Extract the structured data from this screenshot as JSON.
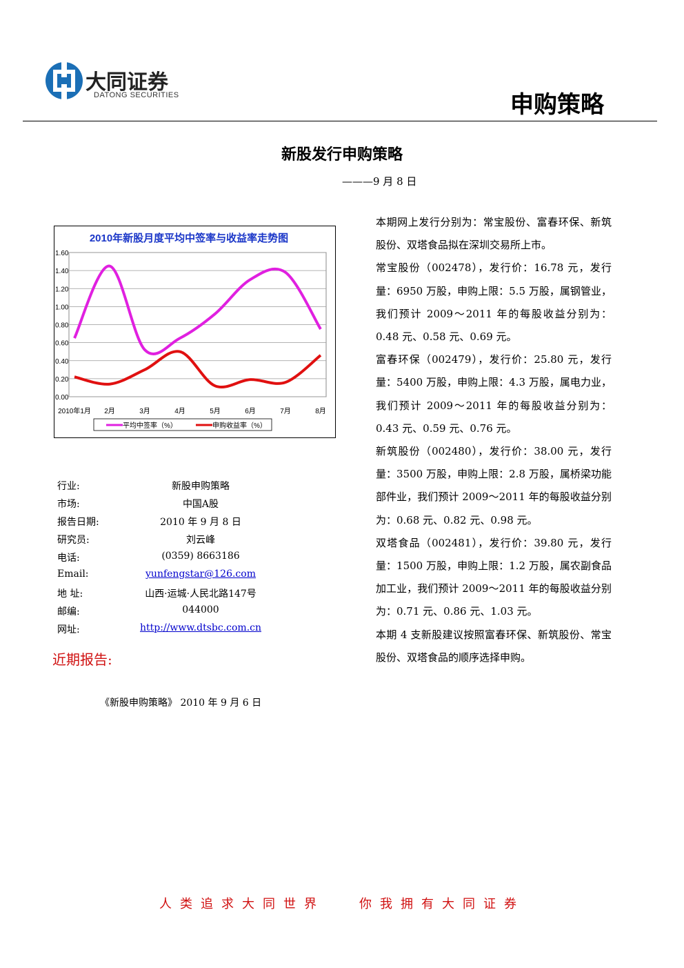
{
  "header": {
    "company": "大同证券",
    "company_en": "DATONG SECURITIES",
    "section": "申购策略"
  },
  "title": "新股发行申购策略",
  "date": "———9 月 8 日",
  "chart_data": {
    "type": "line",
    "title": "2010年新股月度平均中签率与收益率走势图",
    "categories": [
      "2010年1月",
      "2月",
      "3月",
      "4月",
      "5月",
      "6月",
      "7月",
      "8月"
    ],
    "series": [
      {
        "name": "平均中签率（%）",
        "color": "#e020e0",
        "values": [
          0.65,
          1.45,
          0.52,
          0.65,
          0.92,
          1.3,
          1.38,
          0.75
        ]
      },
      {
        "name": "申购收益率（%）",
        "color": "#e01010",
        "values": [
          0.22,
          0.14,
          0.3,
          0.5,
          0.12,
          0.19,
          0.16,
          0.46
        ]
      }
    ],
    "ylim": [
      0,
      1.6
    ],
    "yticks": [
      {
        "value": 0,
        "label": "0.00"
      },
      {
        "value": 0.2,
        "label": "0.20"
      },
      {
        "value": 0.4,
        "label": "0.40"
      },
      {
        "value": 0.6,
        "label": "0.60"
      },
      {
        "value": 0.8,
        "label": "0.80"
      },
      {
        "value": 1,
        "label": "1.00"
      },
      {
        "value": 1.2,
        "label": "1.20"
      },
      {
        "value": 1.4,
        "label": "1.40"
      },
      {
        "value": 1.6,
        "label": "1.60"
      }
    ],
    "grid": true,
    "legend": "bottom"
  },
  "info": [
    [
      "行业:",
      "新股申购策略"
    ],
    [
      "市场:",
      "中国A股"
    ],
    [
      "报告日期:",
      "2010 年 9 月 8 日"
    ],
    [
      "研究员:",
      "刘云峰"
    ],
    [
      "电话:",
      "(0359) 8663186"
    ],
    [
      "Email:",
      "yunfengstar@126.com"
    ],
    [
      "地 址:",
      "山西·运城·人民北路147号"
    ],
    [
      "邮编:",
      "044000"
    ],
    [
      "网址:",
      "http://www.dtsbc.com.cn"
    ]
  ],
  "recent_heading": "近期报告:",
  "recent_report": "《新股申购策略》 2010 年 9 月 6 日",
  "paragraphs": [
    "本期网上发行分别为：常宝股份、富春环保、新筑股份、双塔食品拟在深圳交易所上市。",
    "常宝股份（002478），发行价：16.78 元，发行量：6950 万股，申购上限：5.5 万股，属钢管业，我们预计 2009～2011 年的每股收益分别为：0.48 元、0.58 元、0.69 元。",
    "富春环保（002479），发行价：25.80 元，发行量：5400 万股，申购上限：4.3 万股，属电力业，我们预计 2009～2011 年的每股收益分别为：0.43 元、0.59 元、0.76 元。",
    "新筑股份（002480），发行价：38.00 元，发行量：3500 万股，申购上限：2.8 万股，属桥梁功能部件业，我们预计 2009～2011 年的每股收益分别为：0.68 元、0.82 元、0.98 元。",
    "双塔食品（002481），发行价：39.80 元，发行量：1500 万股，申购上限：1.2 万股，属农副食品加工业，我们预计 2009～2011 年的每股收益分别为：0.71 元、0.86 元、1.03 元。",
    "本期 4 支新股建议按照富春环保、新筑股份、常宝股份、双塔食品的顺序选择申购。"
  ],
  "footer": {
    "slogan_left": "人类追求大同世界",
    "slogan_right": "你我拥有大同证券"
  }
}
